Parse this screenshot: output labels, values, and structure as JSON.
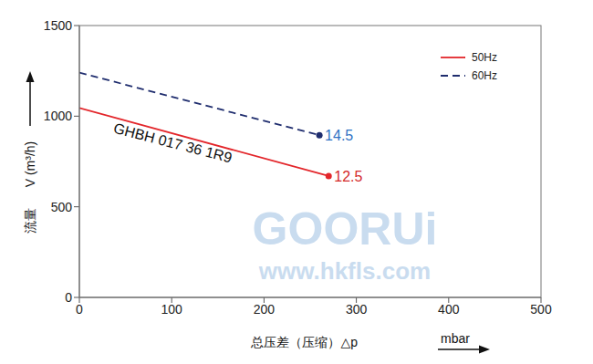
{
  "chart_data": {
    "type": "line",
    "x_label": "总压差（压缩）△p",
    "x_label_unit": "mbar",
    "y_label": "V (m³/h)",
    "y_label_cn": "流量",
    "curve_label": "GHBH 017 36 1R9",
    "watermark": [
      "GOORUi",
      "www.hkfls.com"
    ],
    "series": [
      {
        "name": "50Hz",
        "color": "#e3262b",
        "line_style": "solid",
        "marker": "end",
        "x": [
          0,
          270
        ],
        "values": [
          1045,
          670
        ]
      },
      {
        "name": "60Hz",
        "color": "#1f2d6e",
        "line_style": "dashed",
        "marker": "end",
        "x": [
          0,
          260
        ],
        "values": [
          1240,
          895
        ]
      }
    ],
    "annotations": [
      {
        "text": "12.5",
        "x": 270,
        "y": 670,
        "color": "#d42a2a"
      },
      {
        "text": "14.5",
        "x": 260,
        "y": 895,
        "color": "#2f72c4"
      }
    ],
    "xlim": [
      0,
      500
    ],
    "xticks": [
      0,
      100,
      200,
      300,
      400,
      500
    ],
    "ylim": [
      0,
      1500
    ],
    "yticks": [
      0,
      500,
      1000,
      1500
    ],
    "grid": false,
    "legend": "upper right"
  }
}
